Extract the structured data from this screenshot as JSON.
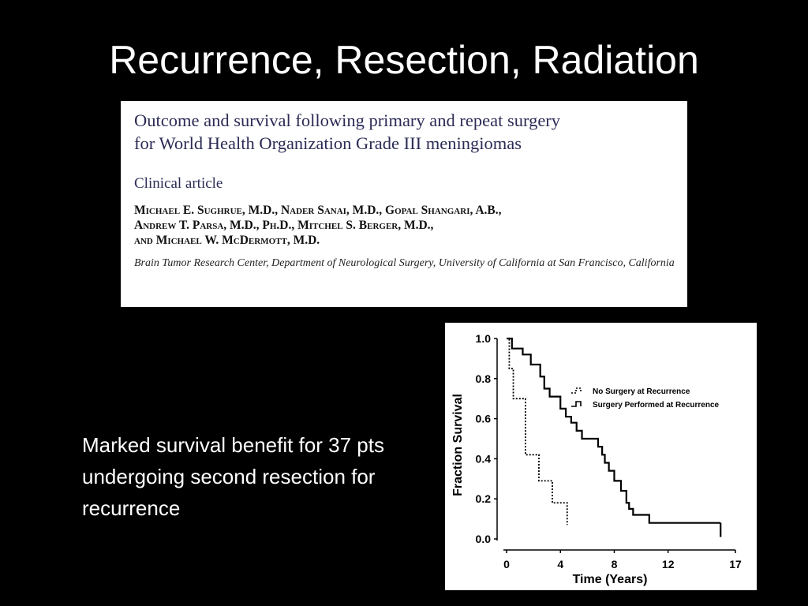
{
  "slide": {
    "title": "Recurrence, Resection, Radiation",
    "body_text": "Marked survival benefit for 37 pts undergoing second resection for recurrence"
  },
  "article": {
    "title_line1": "Outcome and survival following primary and repeat surgery",
    "title_line2": "for World Health Organization Grade III meningiomas",
    "type": "Clinical article",
    "authors_line1": "Michael E. Sughrue, M.D., Nader Sanai, M.D., Gopal Shangari, A.B.,",
    "authors_line2": "Andrew T. Parsa, M.D., Ph.D., Mitchel S. Berger, M.D.,",
    "authors_line3": "and Michael W. McDermott, M.D.",
    "affiliation": "Brain Tumor Research Center, Department of Neurological Surgery, University of California at San Francisco, California"
  },
  "chart_data": {
    "type": "line",
    "xlabel": "Time (Years)",
    "ylabel": "Fraction Survival",
    "xlim": [
      0,
      17
    ],
    "ylim": [
      0,
      1
    ],
    "x_ticks": [
      0,
      4,
      8,
      12,
      17
    ],
    "y_ticks": [
      "0.0",
      "0.2",
      "0.4",
      "0.6",
      "0.8",
      "1.0"
    ],
    "legend_position": "right",
    "series": [
      {
        "name": "No Surgery at Recurrence",
        "style": "dotted",
        "step_points": [
          [
            0,
            1.0
          ],
          [
            0.2,
            0.85
          ],
          [
            0.5,
            0.7
          ],
          [
            1.4,
            0.42
          ],
          [
            2.4,
            0.29
          ],
          [
            3.4,
            0.18
          ],
          [
            4.5,
            0.07
          ]
        ]
      },
      {
        "name": "Surgery Performed at Recurrence",
        "style": "solid",
        "step_points": [
          [
            0,
            1.0
          ],
          [
            0.4,
            0.95
          ],
          [
            1.2,
            0.92
          ],
          [
            1.8,
            0.87
          ],
          [
            2.5,
            0.81
          ],
          [
            2.8,
            0.75
          ],
          [
            3.2,
            0.71
          ],
          [
            4.0,
            0.65
          ],
          [
            4.4,
            0.61
          ],
          [
            4.8,
            0.58
          ],
          [
            5.2,
            0.54
          ],
          [
            5.6,
            0.5
          ],
          [
            6.8,
            0.46
          ],
          [
            7.1,
            0.42
          ],
          [
            7.3,
            0.38
          ],
          [
            7.6,
            0.34
          ],
          [
            8.0,
            0.29
          ],
          [
            8.5,
            0.24
          ],
          [
            8.9,
            0.18
          ],
          [
            9.1,
            0.15
          ],
          [
            9.4,
            0.12
          ],
          [
            10.6,
            0.08
          ],
          [
            15.9,
            0.01
          ]
        ]
      }
    ]
  }
}
